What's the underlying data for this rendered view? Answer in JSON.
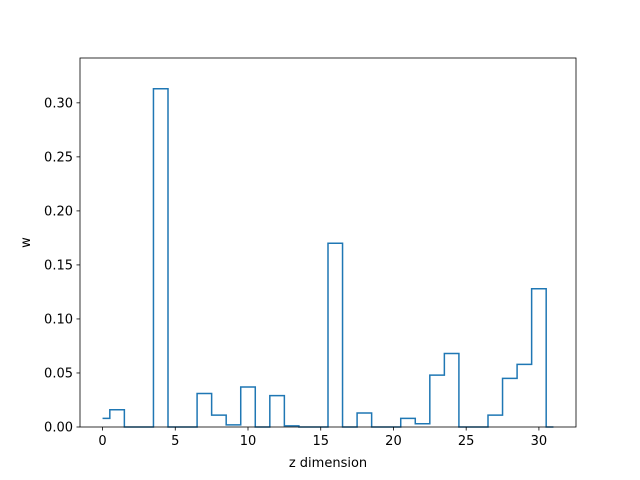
{
  "chart_data": {
    "type": "line",
    "drawstyle": "steps-mid",
    "xlabel": "z dimension",
    "ylabel": "w",
    "x": [
      0,
      1,
      2,
      3,
      4,
      5,
      6,
      7,
      8,
      9,
      10,
      11,
      12,
      13,
      14,
      15,
      16,
      17,
      18,
      19,
      20,
      21,
      22,
      23,
      24,
      25,
      26,
      27,
      28,
      29,
      30,
      31
    ],
    "y": [
      0.008,
      0.016,
      0.0,
      0.0,
      0.313,
      0.0,
      0.0,
      0.031,
      0.011,
      0.002,
      0.037,
      0.0,
      0.029,
      0.001,
      0.0,
      0.0,
      0.17,
      0.0,
      0.013,
      0.0,
      0.0,
      0.008,
      0.003,
      0.048,
      0.068,
      0.0,
      0.0,
      0.011,
      0.045,
      0.058,
      0.128,
      0.0
    ],
    "xlim": [
      -1.55,
      32.55
    ],
    "ylim": [
      0.0,
      0.3415
    ],
    "xticks": [
      0,
      5,
      10,
      15,
      20,
      25,
      30
    ],
    "xtick_labels": [
      "0",
      "5",
      "10",
      "15",
      "20",
      "25",
      "30"
    ],
    "yticks": [
      0.0,
      0.05,
      0.1,
      0.15,
      0.2,
      0.25,
      0.3
    ],
    "ytick_labels": [
      "0.00",
      "0.05",
      "0.10",
      "0.15",
      "0.20",
      "0.25",
      "0.30"
    ],
    "grid": false,
    "color": "#1f77b4"
  }
}
